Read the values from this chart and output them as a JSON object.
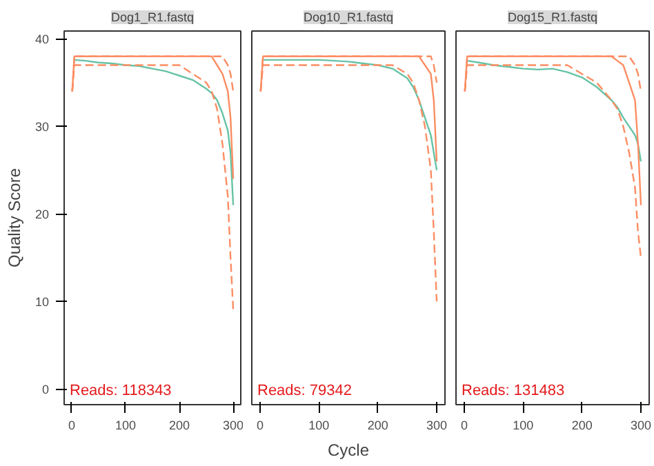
{
  "chart_data": [
    {
      "type": "line",
      "title": "Dog1_R1.fastq",
      "ylabel": "Quality Score",
      "xlim": [
        -14,
        314
      ],
      "ylim": [
        -1.8,
        40.9
      ],
      "xticks": [
        0,
        100,
        200,
        300
      ],
      "yticks": [
        0,
        10,
        20,
        30,
        40
      ],
      "grid": false,
      "x": [
        1,
        5,
        25,
        50,
        75,
        100,
        125,
        150,
        175,
        200,
        225,
        250,
        260,
        270,
        280,
        290,
        295,
        300
      ],
      "series": [
        {
          "color": "#66c2a5",
          "line_style": "solid",
          "values": [
            null,
            37.6,
            37.5,
            37.3,
            37.2,
            37.0,
            36.9,
            36.6,
            36.3,
            35.8,
            35.3,
            34.3,
            33.8,
            33,
            31.5,
            29.5,
            27,
            21
          ]
        },
        {
          "color": "#fc8d62",
          "line_style": "solid",
          "values": [
            34,
            38,
            38,
            38,
            38,
            38,
            38,
            38,
            38,
            38,
            38,
            38,
            38,
            37,
            36,
            34,
            31,
            24
          ]
        },
        {
          "color": "#fc8d62",
          "line_style": "dashed",
          "values": [
            34,
            37,
            37,
            37,
            37,
            37,
            37,
            37,
            37,
            37,
            36,
            35,
            34,
            32,
            28,
            22,
            15,
            9
          ]
        },
        {
          "color": "#fc8d62",
          "line_style": "dashed",
          "values": [
            34,
            38,
            38,
            38,
            38,
            38,
            38,
            38,
            38,
            38,
            38,
            38,
            38,
            38,
            38,
            37,
            36,
            34
          ]
        }
      ],
      "annotations": [
        "Reads:  118343"
      ]
    },
    {
      "type": "line",
      "title": "Dog10_R1.fastq",
      "xlabel": "Cycle",
      "xlim": [
        -14,
        314
      ],
      "ylim": [
        -1.8,
        40.9
      ],
      "xticks": [
        0,
        100,
        200,
        300
      ],
      "yticks": [
        0,
        10,
        20,
        30,
        40
      ],
      "grid": false,
      "x": [
        1,
        5,
        25,
        50,
        75,
        100,
        125,
        150,
        175,
        200,
        225,
        250,
        260,
        270,
        280,
        290,
        295,
        300
      ],
      "series": [
        {
          "color": "#66c2a5",
          "line_style": "solid",
          "values": [
            null,
            37.6,
            37.6,
            37.6,
            37.6,
            37.6,
            37.5,
            37.4,
            37.2,
            37,
            36.6,
            35.5,
            34.5,
            33,
            31,
            29,
            27,
            25
          ]
        },
        {
          "color": "#fc8d62",
          "line_style": "solid",
          "values": [
            34,
            38,
            38,
            38,
            38,
            38,
            38,
            38,
            38,
            38,
            38,
            38,
            38,
            38,
            37,
            36,
            33,
            26
          ]
        },
        {
          "color": "#fc8d62",
          "line_style": "dashed",
          "values": [
            34,
            37,
            37,
            37,
            37,
            37,
            37,
            37,
            37,
            37,
            37,
            36,
            35,
            33,
            30,
            25,
            18,
            10
          ]
        },
        {
          "color": "#fc8d62",
          "line_style": "dashed",
          "values": [
            34,
            38,
            38,
            38,
            38,
            38,
            38,
            38,
            38,
            38,
            38,
            38,
            38,
            38,
            38,
            38,
            37,
            35
          ]
        }
      ],
      "annotations": [
        "Reads:  79342"
      ],
      "tick_labels": "x"
    },
    {
      "type": "line",
      "title": "Dog15_R1.fastq",
      "xlim": [
        -14,
        314
      ],
      "ylim": [
        -1.8,
        40.9
      ],
      "xticks": [
        0,
        100,
        200,
        300
      ],
      "yticks": [
        0,
        10,
        20,
        30,
        40
      ],
      "grid": false,
      "x": [
        1,
        5,
        25,
        50,
        75,
        100,
        125,
        150,
        175,
        200,
        225,
        250,
        260,
        270,
        280,
        290,
        295,
        300
      ],
      "series": [
        {
          "color": "#66c2a5",
          "line_style": "solid",
          "values": [
            null,
            37.5,
            37.3,
            37,
            36.8,
            36.6,
            36.5,
            36.6,
            36.2,
            35.6,
            34.5,
            33,
            32.2,
            31,
            30,
            29,
            28,
            26
          ]
        },
        {
          "color": "#fc8d62",
          "line_style": "solid",
          "values": [
            34,
            38,
            38,
            38,
            38,
            38,
            38,
            38,
            38,
            38,
            38,
            38,
            37.5,
            37,
            35,
            33,
            28,
            21
          ]
        },
        {
          "color": "#fc8d62",
          "line_style": "dashed",
          "values": [
            34,
            37,
            37,
            37,
            37,
            37,
            37,
            37,
            37,
            36,
            35,
            33,
            32,
            30,
            27,
            23,
            18,
            15
          ]
        },
        {
          "color": "#fc8d62",
          "line_style": "dashed",
          "values": [
            34,
            38,
            38,
            38,
            38,
            38,
            38,
            38,
            38,
            38,
            38,
            38,
            38,
            38,
            38,
            37,
            36,
            34
          ]
        }
      ],
      "annotations": [
        "Reads:  131483"
      ],
      "tick_labels": "x"
    }
  ]
}
